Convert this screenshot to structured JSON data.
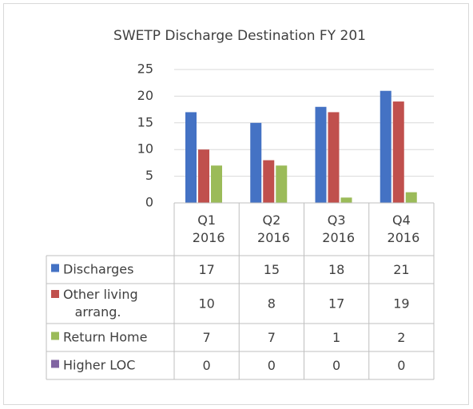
{
  "chart_data": {
    "type": "bar",
    "title": "SWETP Discharge Destination FY 201",
    "categories": [
      "Q1 2016",
      "Q2 2016",
      "Q3 2016",
      "Q4 2016"
    ],
    "series": [
      {
        "name": "Discharges",
        "color": "#4472c4",
        "values": [
          17,
          15,
          18,
          21
        ]
      },
      {
        "name": "Other living arrang.",
        "color": "#c0504d",
        "values": [
          10,
          8,
          17,
          19
        ]
      },
      {
        "name": "Return Home",
        "color": "#9bbb59",
        "values": [
          7,
          7,
          1,
          2
        ]
      },
      {
        "name": "Higher LOC",
        "color": "#8064a2",
        "values": [
          0,
          0,
          0,
          0
        ]
      }
    ],
    "ylim": [
      0,
      25
    ],
    "yticks": [
      0,
      5,
      10,
      15,
      20,
      25
    ],
    "grid": true,
    "legend": "table"
  }
}
